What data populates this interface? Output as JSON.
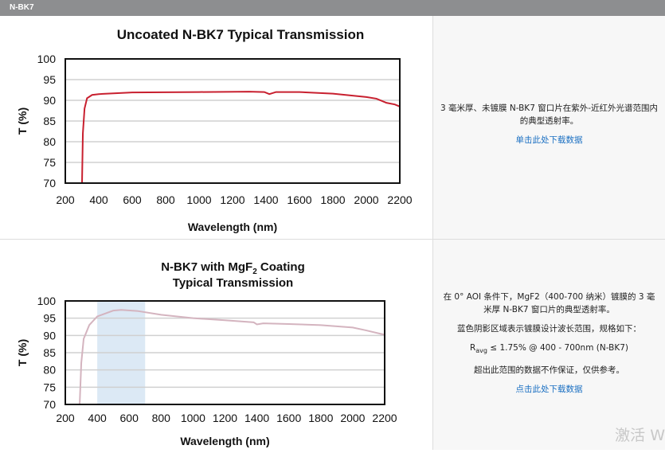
{
  "header": {
    "title": "N-BK7"
  },
  "sections": [
    {
      "description": "3 毫米厚、未镀膜 N-BK7 窗口片在紫外-近红外光谱范围内的典型透射率。",
      "link": "单击此处下载数据"
    },
    {
      "description": "在 0° AOI 条件下，MgF2（400-700 纳米）镀膜的 3 毫米厚 N-BK7 窗口片的典型透射率。",
      "spec_intro": "蓝色阴影区域表示镀膜设计波长范围，规格如下：",
      "spec_r": "R",
      "spec_sub": "avg",
      "spec_rest": " ≤ 1.75% @ 400 - 700nm (N-BK7)",
      "disclaimer": "超出此范围的数据不作保证，仅供参考。",
      "link": "点击此处下载数据"
    }
  ],
  "watermark": "激活 W",
  "chart_data": [
    {
      "type": "line",
      "title": "Uncoated N-BK7 Typical Transmission",
      "xlabel": "Wavelength (nm)",
      "ylabel": "T (%)",
      "xlim": [
        200,
        2200
      ],
      "ylim": [
        70,
        100
      ],
      "xticks": [
        200,
        400,
        600,
        800,
        1000,
        1200,
        1400,
        1600,
        1800,
        2000,
        2200
      ],
      "yticks": [
        70,
        75,
        80,
        85,
        90,
        95,
        100
      ],
      "grid": true,
      "color": "#c8202f",
      "x": [
        300,
        305,
        315,
        330,
        360,
        400,
        600,
        1000,
        1300,
        1390,
        1420,
        1460,
        1600,
        1800,
        2000,
        2060,
        2120,
        2170,
        2200
      ],
      "y": [
        70,
        82,
        88,
        90.5,
        91.3,
        91.5,
        91.9,
        92.0,
        92.1,
        92.0,
        91.5,
        92.0,
        92.0,
        91.6,
        90.8,
        90.4,
        89.4,
        89.0,
        88.5
      ]
    },
    {
      "type": "line",
      "title": "N-BK7 with MgF2 Coating",
      "title2": "Typical Transmission",
      "xlabel": "Wavelength (nm)",
      "ylabel": "T (%)",
      "xlim": [
        200,
        2200
      ],
      "ylim": [
        70,
        100
      ],
      "xticks": [
        200,
        400,
        600,
        800,
        1000,
        1200,
        1400,
        1600,
        1800,
        2000,
        2200
      ],
      "yticks": [
        70,
        75,
        80,
        85,
        90,
        95,
        100
      ],
      "grid": true,
      "color": "#d4b4bf",
      "shaded_range": [
        400,
        700
      ],
      "shade_color": "#dce9f5",
      "x": [
        290,
        300,
        315,
        350,
        400,
        500,
        550,
        650,
        800,
        1000,
        1200,
        1380,
        1400,
        1440,
        1600,
        1800,
        2000,
        2080,
        2200
      ],
      "y": [
        70,
        82,
        89,
        93,
        95.5,
        97.2,
        97.4,
        97.1,
        96,
        95,
        94.4,
        93.8,
        93.2,
        93.5,
        93.3,
        93,
        92.3,
        91.5,
        90.2
      ]
    }
  ]
}
